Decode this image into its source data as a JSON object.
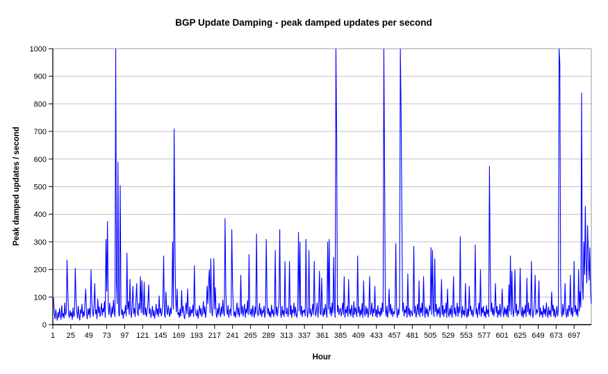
{
  "page": {
    "background": "#ffffff"
  },
  "chart_data": {
    "type": "line",
    "title": "BGP Update Damping - peak damped updates per second",
    "xlabel": "Hour",
    "ylabel": "Peak damped updates / second",
    "legend": "none",
    "grid": "horizontal",
    "x_start": 1,
    "x_end": 720,
    "x_tick_interval": 24,
    "x_tick_labels": [
      1,
      25,
      49,
      73,
      97,
      121,
      145,
      169,
      193,
      217,
      241,
      265,
      289,
      313,
      337,
      361,
      385,
      409,
      433,
      457,
      481,
      505,
      529,
      553,
      577,
      601,
      625,
      649,
      673,
      697
    ],
    "ylim": [
      0,
      1000
    ],
    "y_ticks": [
      0,
      100,
      200,
      300,
      400,
      500,
      600,
      700,
      800,
      900,
      1000
    ],
    "colors": {
      "series": "#0000ff",
      "gridline": "#c0c0c0",
      "plot_border": "#999999",
      "axis": "#000000",
      "text": "#000000",
      "background": "#ffffff"
    },
    "series_name": "peak damped updates per second",
    "values": [
      90,
      95,
      40,
      20,
      55,
      30,
      15,
      45,
      25,
      60,
      35,
      18,
      70,
      28,
      42,
      22,
      80,
      33,
      48,
      235,
      120,
      38,
      25,
      52,
      30,
      45,
      18,
      62,
      28,
      38,
      205,
      95,
      50,
      22,
      68,
      35,
      15,
      55,
      40,
      75,
      25,
      48,
      30,
      85,
      130,
      42,
      20,
      58,
      35,
      60,
      25,
      200,
      88,
      45,
      30,
      72,
      150,
      38,
      55,
      20,
      95,
      42,
      65,
      28,
      50,
      78,
      32,
      60,
      45,
      85,
      25,
      310,
      120,
      375,
      60,
      35,
      80,
      45,
      25,
      65,
      38,
      90,
      48,
      28,
      1000,
      160,
      75,
      590,
      42,
      30,
      505,
      68,
      35,
      55,
      22,
      48,
      40,
      70,
      30,
      260,
      55,
      85,
      35,
      165,
      48,
      25,
      75,
      140,
      38,
      60,
      28,
      90,
      150,
      45,
      32,
      78,
      55,
      175,
      42,
      160,
      50,
      35,
      155,
      35,
      62,
      28,
      48,
      80,
      145,
      38,
      58,
      25,
      42,
      68,
      30,
      52,
      22,
      45,
      75,
      35,
      58,
      28,
      105,
      40,
      60,
      30,
      48,
      85,
      250,
      40,
      25,
      120,
      55,
      35,
      70,
      45,
      28,
      62,
      38,
      75,
      300,
      55,
      710,
      305,
      90,
      45,
      130,
      35,
      45,
      25,
      58,
      30,
      125,
      42,
      68,
      35,
      20,
      52,
      80,
      38,
      130,
      48,
      25,
      65,
      30,
      55,
      42,
      72,
      28,
      215,
      60,
      38,
      30,
      55,
      22,
      48,
      70,
      35,
      60,
      28,
      45,
      85,
      38,
      65,
      25,
      52,
      140,
      75,
      155,
      200,
      42,
      240,
      58,
      30,
      68,
      240,
      55,
      135,
      40,
      25,
      60,
      35,
      78,
      45,
      28,
      65,
      38,
      90,
      48,
      30,
      385,
      120,
      55,
      35,
      70,
      25,
      48,
      58,
      32,
      345,
      140,
      65,
      30,
      48,
      25,
      55,
      80,
      35,
      62,
      28,
      45,
      180,
      38,
      68,
      30,
      52,
      75,
      25,
      58,
      42,
      88,
      35,
      255,
      48,
      35,
      58,
      28,
      70,
      45,
      25,
      65,
      38,
      330,
      55,
      30,
      48,
      78,
      35,
      60,
      28,
      52,
      42,
      68,
      25,
      45,
      310,
      85,
      38,
      60,
      30,
      48,
      25,
      72,
      38,
      55,
      28,
      45,
      270,
      35,
      65,
      30,
      58,
      80,
      345,
      42,
      25,
      68,
      35,
      52,
      28,
      230,
      45,
      38,
      62,
      28,
      48,
      230,
      35,
      70,
      25,
      55,
      42,
      80,
      30,
      65,
      38,
      25,
      58,
      335,
      48,
      300,
      35,
      68,
      28,
      52,
      45,
      55,
      30,
      310,
      65,
      25,
      48,
      270,
      38,
      58,
      28,
      45,
      75,
      35,
      230,
      62,
      30,
      52,
      80,
      25,
      68,
      195,
      42,
      35,
      170,
      45,
      28,
      60,
      35,
      75,
      48,
      25,
      300,
      55,
      310,
      38,
      65,
      30,
      80,
      42,
      245,
      58,
      25,
      1000,
      690,
      45,
      70,
      35,
      52,
      60,
      30,
      48,
      80,
      35,
      175,
      25,
      55,
      42,
      68,
      28,
      165,
      38,
      58,
      30,
      72,
      45,
      25,
      85,
      35,
      62,
      48,
      28,
      250,
      42,
      65,
      28,
      55,
      35,
      78,
      25,
      160,
      48,
      30,
      68,
      38,
      60,
      25,
      52,
      175,
      35,
      45,
      80,
      28,
      58,
      42,
      140,
      30,
      55,
      25,
      70,
      38,
      48,
      28,
      62,
      35,
      80,
      45,
      1000,
      555,
      58,
      30,
      68,
      25,
      52,
      130,
      42,
      75,
      35,
      60,
      28,
      48,
      38,
      70,
      295,
      45,
      25,
      58,
      35,
      65,
      1000,
      775,
      420,
      48,
      80,
      30,
      55,
      42,
      68,
      25,
      185,
      35,
      60,
      28,
      52,
      45,
      30,
      55,
      285,
      40,
      68,
      25,
      48,
      75,
      35,
      160,
      28,
      62,
      42,
      80,
      30,
      175,
      55,
      25,
      65,
      38,
      58,
      28,
      45,
      70,
      50,
      280,
      35,
      270,
      60,
      28,
      240,
      45,
      75,
      30,
      58,
      38,
      65,
      25,
      48,
      165,
      35,
      70,
      28,
      55,
      42,
      80,
      25,
      130,
      45,
      28,
      60,
      35,
      70,
      25,
      55,
      175,
      38,
      62,
      30,
      48,
      80,
      28,
      65,
      42,
      320,
      58,
      25,
      68,
      35,
      52,
      30,
      150,
      40,
      25,
      58,
      30,
      140,
      48,
      68,
      35,
      55,
      28,
      45,
      75,
      290,
      38,
      60,
      25,
      52,
      80,
      35,
      200,
      28,
      62,
      42,
      68,
      30,
      48,
      25,
      70,
      38,
      55,
      28,
      575,
      210,
      45,
      80,
      35,
      62,
      30,
      58,
      150,
      42,
      68,
      25,
      52,
      35,
      75,
      28,
      60,
      130,
      45,
      28,
      65,
      38,
      58,
      30,
      70,
      25,
      145,
      48,
      250,
      35,
      195,
      55,
      28,
      62,
      200,
      42,
      75,
      30,
      52,
      38,
      68,
      205,
      48,
      30,
      65,
      25,
      55,
      38,
      72,
      28,
      170,
      45,
      80,
      35,
      58,
      30,
      230,
      62,
      25,
      48,
      75,
      180,
      35,
      55,
      42,
      55,
      160,
      28,
      62,
      35,
      48,
      25,
      70,
      38,
      58,
      30,
      80,
      45,
      25,
      65,
      35,
      52,
      28,
      120,
      48,
      72,
      30,
      58,
      25,
      40,
      68,
      30,
      55,
      1000,
      945,
      160,
      45,
      28,
      75,
      35,
      60,
      150,
      42,
      25,
      58,
      30,
      70,
      48,
      180,
      35,
      62,
      28,
      55,
      230,
      45,
      70,
      35,
      58,
      28,
      200,
      48,
      120,
      62,
      840,
      160,
      90,
      300,
      180,
      430,
      220,
      150,
      360,
      250,
      160,
      280,
      120,
      75
    ]
  }
}
